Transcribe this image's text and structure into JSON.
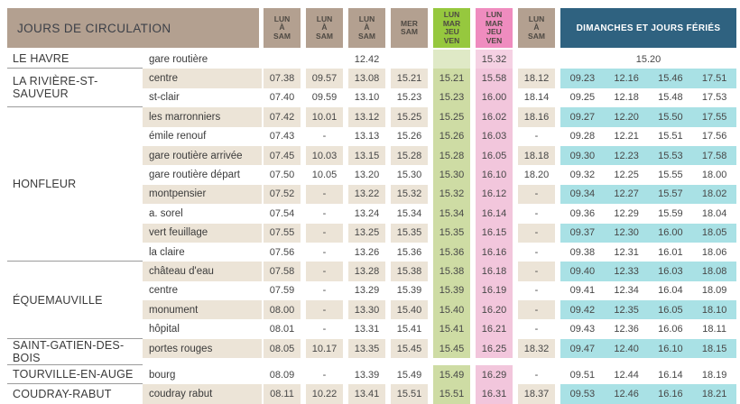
{
  "title": "JOURS DE CIRCULATION",
  "sunday_header": "DIMANCHES ET JOURS FÉRIÉS",
  "day_columns": [
    {
      "lines": [
        "LUN",
        "À",
        "SAM"
      ],
      "style": "tan"
    },
    {
      "lines": [
        "LUN",
        "À",
        "SAM"
      ],
      "style": "tan"
    },
    {
      "lines": [
        "LUN",
        "À",
        "SAM"
      ],
      "style": "tan"
    },
    {
      "lines": [
        "MER",
        "SAM"
      ],
      "style": "tan"
    },
    {
      "lines": [
        "LUN",
        "MAR",
        "JEU",
        "VEN"
      ],
      "style": "green"
    },
    {
      "lines": [
        "LUN",
        "MAR",
        "JEU",
        "VEN"
      ],
      "style": "pink"
    },
    {
      "lines": [
        "LUN",
        "À",
        "SAM"
      ],
      "style": "tan"
    }
  ],
  "colors": {
    "tan_header": "#b3a090",
    "green_header": "#96c83e",
    "pink_header": "#ef8cbf",
    "blue_header": "#2f6280",
    "beige_row": "#ece4d7",
    "green_cell": "#cedca4",
    "green_cell_light": "#dfe9c6",
    "pink_cell": "#f2c6dc",
    "pink_cell_light": "#f5d1e3",
    "cyan_cell": "#a9e1e5",
    "title_text": "#3c4048",
    "day_text": "#4e4943",
    "body_text": "#3a3a3a",
    "time_text": "#474747",
    "separator_line": "#9b9b9b"
  },
  "localities": [
    {
      "name": "LE HAVRE",
      "stops": [
        {
          "name": "gare routière",
          "times": [
            "",
            "",
            "12.42",
            "",
            "",
            "15.32",
            ""
          ],
          "sunday_merged": "15.20"
        }
      ]
    },
    {
      "name": "LA RIVIÈRE-ST-SAUVEUR",
      "stops": [
        {
          "name": "centre",
          "times": [
            "07.38",
            "09.57",
            "13.08",
            "15.21",
            "15.21",
            "15.58",
            "18.12"
          ],
          "sunday": [
            "09.23",
            "12.16",
            "15.46",
            "17.51"
          ]
        },
        {
          "name": "st-clair",
          "times": [
            "07.40",
            "09.59",
            "13.10",
            "15.23",
            "15.23",
            "16.00",
            "18.14"
          ],
          "sunday": [
            "09.25",
            "12.18",
            "15.48",
            "17.53"
          ]
        }
      ]
    },
    {
      "name": "HONFLEUR",
      "stops": [
        {
          "name": "les marronniers",
          "times": [
            "07.42",
            "10.01",
            "13.12",
            "15.25",
            "15.25",
            "16.02",
            "18.16"
          ],
          "sunday": [
            "09.27",
            "12.20",
            "15.50",
            "17.55"
          ]
        },
        {
          "name": "émile renouf",
          "times": [
            "07.43",
            "-",
            "13.13",
            "15.26",
            "15.26",
            "16.03",
            "-"
          ],
          "sunday": [
            "09.28",
            "12.21",
            "15.51",
            "17.56"
          ]
        },
        {
          "name": "gare routière arrivée",
          "times": [
            "07.45",
            "10.03",
            "13.15",
            "15.28",
            "15.28",
            "16.05",
            "18.18"
          ],
          "sunday": [
            "09.30",
            "12.23",
            "15.53",
            "17.58"
          ]
        },
        {
          "name": "gare routière départ",
          "times": [
            "07.50",
            "10.05",
            "13.20",
            "15.30",
            "15.30",
            "16.10",
            "18.20"
          ],
          "sunday": [
            "09.32",
            "12.25",
            "15.55",
            "18.00"
          ]
        },
        {
          "name": "montpensier",
          "times": [
            "07.52",
            "-",
            "13.22",
            "15.32",
            "15.32",
            "16.12",
            "-"
          ],
          "sunday": [
            "09.34",
            "12.27",
            "15.57",
            "18.02"
          ]
        },
        {
          "name": "a. sorel",
          "times": [
            "07.54",
            "-",
            "13.24",
            "15.34",
            "15.34",
            "16.14",
            "-"
          ],
          "sunday": [
            "09.36",
            "12.29",
            "15.59",
            "18.04"
          ]
        },
        {
          "name": "vert feuillage",
          "times": [
            "07.55",
            "-",
            "13.25",
            "15.35",
            "15.35",
            "16.15",
            "-"
          ],
          "sunday": [
            "09.37",
            "12.30",
            "16.00",
            "18.05"
          ]
        },
        {
          "name": "la claire",
          "times": [
            "07.56",
            "-",
            "13.26",
            "15.36",
            "15.36",
            "16.16",
            "-"
          ],
          "sunday": [
            "09.38",
            "12.31",
            "16.01",
            "18.06"
          ]
        }
      ]
    },
    {
      "name": "ÉQUEMAUVILLE",
      "stops": [
        {
          "name": "château d'eau",
          "times": [
            "07.58",
            "-",
            "13.28",
            "15.38",
            "15.38",
            "16.18",
            "-"
          ],
          "sunday": [
            "09.40",
            "12.33",
            "16.03",
            "18.08"
          ]
        },
        {
          "name": "centre",
          "times": [
            "07.59",
            "-",
            "13.29",
            "15.39",
            "15.39",
            "16.19",
            "-"
          ],
          "sunday": [
            "09.41",
            "12.34",
            "16.04",
            "18.09"
          ]
        },
        {
          "name": "monument",
          "times": [
            "08.00",
            "-",
            "13.30",
            "15.40",
            "15.40",
            "16.20",
            "-"
          ],
          "sunday": [
            "09.42",
            "12.35",
            "16.05",
            "18.10"
          ]
        },
        {
          "name": "hôpital",
          "times": [
            "08.01",
            "-",
            "13.31",
            "15.41",
            "15.41",
            "16.21",
            "-"
          ],
          "sunday": [
            "09.43",
            "12.36",
            "16.06",
            "18.11"
          ]
        }
      ]
    },
    {
      "name": "SAINT-GATIEN-DES-BOIS",
      "stops": [
        {
          "name": "portes rouges",
          "times": [
            "08.05",
            "10.17",
            "13.35",
            "15.45",
            "15.45",
            "16.25",
            "18.32"
          ],
          "sunday": [
            "09.47",
            "12.40",
            "16.10",
            "18.15"
          ]
        }
      ]
    },
    {
      "name": "TOURVILLE-EN-AUGE",
      "stops": [
        {
          "name": "bourg",
          "times": [
            "08.09",
            "-",
            "13.39",
            "15.49",
            "15.49",
            "16.29",
            "-"
          ],
          "sunday": [
            "09.51",
            "12.44",
            "16.14",
            "18.19"
          ]
        }
      ]
    },
    {
      "name": "COUDRAY-RABUT",
      "stops": [
        {
          "name": "coudray rabut",
          "times": [
            "08.11",
            "10.22",
            "13.41",
            "15.51",
            "15.51",
            "16.31",
            "18.37"
          ],
          "sunday": [
            "09.53",
            "12.46",
            "16.16",
            "18.21"
          ]
        }
      ]
    }
  ]
}
